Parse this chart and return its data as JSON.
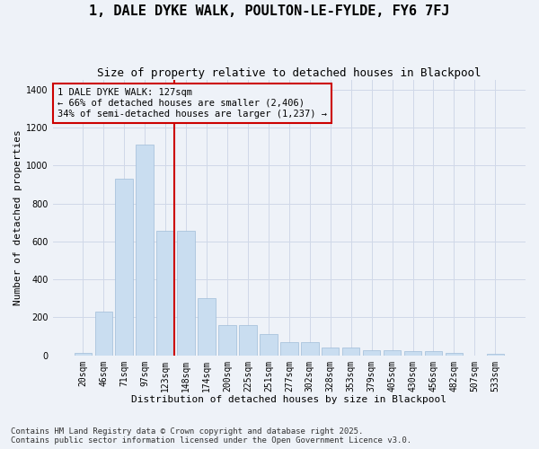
{
  "title": "1, DALE DYKE WALK, POULTON-LE-FYLDE, FY6 7FJ",
  "subtitle": "Size of property relative to detached houses in Blackpool",
  "xlabel": "Distribution of detached houses by size in Blackpool",
  "ylabel": "Number of detached properties",
  "categories": [
    "20sqm",
    "46sqm",
    "71sqm",
    "97sqm",
    "123sqm",
    "148sqm",
    "174sqm",
    "200sqm",
    "225sqm",
    "251sqm",
    "277sqm",
    "302sqm",
    "328sqm",
    "353sqm",
    "379sqm",
    "405sqm",
    "430sqm",
    "456sqm",
    "482sqm",
    "507sqm",
    "533sqm"
  ],
  "values": [
    15,
    230,
    930,
    1110,
    655,
    655,
    300,
    160,
    160,
    110,
    70,
    70,
    40,
    40,
    25,
    25,
    20,
    20,
    15,
    0,
    10
  ],
  "bar_color": "#c9ddf0",
  "bar_edge_color": "#a0bcd8",
  "grid_color": "#d0d8e8",
  "bg_color": "#eef2f8",
  "vline_x": 4.425,
  "vline_color": "#cc0000",
  "annotation_text": "1 DALE DYKE WALK: 127sqm\n← 66% of detached houses are smaller (2,406)\n34% of semi-detached houses are larger (1,237) →",
  "annotation_box_color": "#cc0000",
  "ylim": [
    0,
    1450
  ],
  "yticks": [
    0,
    200,
    400,
    600,
    800,
    1000,
    1200,
    1400
  ],
  "footnote": "Contains HM Land Registry data © Crown copyright and database right 2025.\nContains public sector information licensed under the Open Government Licence v3.0.",
  "title_fontsize": 11,
  "subtitle_fontsize": 9,
  "xlabel_fontsize": 8,
  "ylabel_fontsize": 8,
  "tick_fontsize": 7,
  "annotation_fontsize": 7.5,
  "footnote_fontsize": 6.5
}
